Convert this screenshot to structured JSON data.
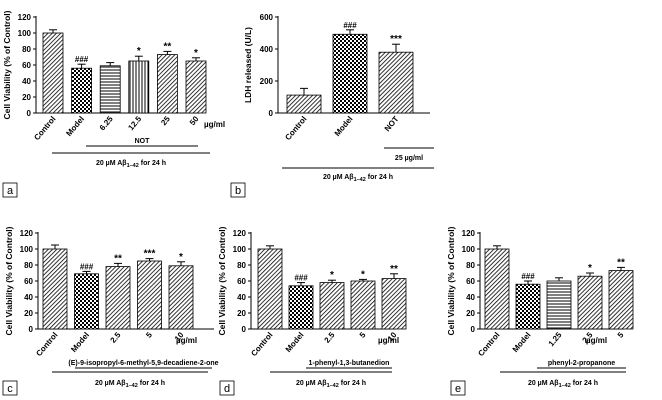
{
  "chart_data": [
    {
      "panel": "a",
      "type": "bar",
      "ylabel": "Cell Viability (% of Control)",
      "ylim": [
        0,
        120
      ],
      "yticks": [
        0,
        20,
        40,
        60,
        80,
        100,
        120
      ],
      "categories": [
        "Control",
        "Model",
        "6.25",
        "12.5",
        "25",
        "50"
      ],
      "unit": "µg/ml",
      "values": [
        100,
        56,
        59,
        65,
        73,
        65
      ],
      "errors": [
        4,
        5,
        4,
        6,
        4,
        4
      ],
      "significance": [
        "",
        "###",
        "",
        "*",
        "**",
        "*"
      ],
      "patterns": [
        "diag",
        "check",
        "horiz",
        "vert",
        "diag",
        "diag"
      ],
      "group_label": "NOT",
      "condition_prefix": "20 µM Aβ",
      "condition_sub": "1–42",
      "condition_suffix": " for 24 h"
    },
    {
      "panel": "b",
      "type": "bar",
      "ylabel": "LDH released (U/L)",
      "ylim": [
        0,
        600
      ],
      "yticks": [
        0,
        200,
        400,
        600
      ],
      "categories": [
        "Control",
        "Model",
        "NOT"
      ],
      "unit": "",
      "values": [
        112,
        492,
        380
      ],
      "errors": [
        42,
        28,
        50
      ],
      "significance": [
        "",
        "###",
        "***"
      ],
      "patterns": [
        "diag",
        "check",
        "diag"
      ],
      "group_label": "25 µg/ml",
      "condition_prefix": "20 µM Aβ",
      "condition_sub": "1–42",
      "condition_suffix": " for 24 h"
    },
    {
      "panel": "c",
      "type": "bar",
      "ylabel": "Cell Viability (% of Control)",
      "ylim": [
        0,
        120
      ],
      "yticks": [
        0,
        20,
        40,
        60,
        80,
        100,
        120
      ],
      "categories": [
        "Control",
        "Model",
        "2.5",
        "5",
        "10"
      ],
      "unit": "µg/ml",
      "values": [
        100,
        69,
        78,
        85,
        79
      ],
      "errors": [
        5,
        3,
        4,
        3,
        5
      ],
      "significance": [
        "",
        "###",
        "**",
        "***",
        "*"
      ],
      "patterns": [
        "diag",
        "check",
        "diag",
        "diag",
        "diag"
      ],
      "group_label": "(E)-9-isopropyl-6-methyl-5,9-decadiene-2-one",
      "condition_prefix": "20 µM Aβ",
      "condition_sub": "1–42",
      "condition_suffix": " for 24 h"
    },
    {
      "panel": "d",
      "type": "bar",
      "ylabel": "Cell Viability (% of Control)",
      "ylim": [
        0,
        120
      ],
      "yticks": [
        0,
        20,
        40,
        60,
        80,
        100,
        120
      ],
      "categories": [
        "Control",
        "Model",
        "2.5",
        "5",
        "10"
      ],
      "unit": "µg/ml",
      "values": [
        100,
        54,
        58,
        60,
        63
      ],
      "errors": [
        4,
        4,
        3,
        2,
        6
      ],
      "significance": [
        "",
        "###",
        "*",
        "*",
        "**"
      ],
      "patterns": [
        "diag",
        "check",
        "diag",
        "diag",
        "diag"
      ],
      "group_label": "1-phenyl-1,3-butanedion",
      "condition_prefix": "20 µM Aβ",
      "condition_sub": "1–42",
      "condition_suffix": " for 24 h"
    },
    {
      "panel": "e",
      "type": "bar",
      "ylabel": "Cell Viability (% of Control)",
      "ylim": [
        0,
        120
      ],
      "yticks": [
        0,
        20,
        40,
        60,
        80,
        100,
        120
      ],
      "categories": [
        "Control",
        "Model",
        "1.25",
        "2.5",
        "5"
      ],
      "unit": "µg/ml",
      "values": [
        100,
        56,
        60,
        66,
        73
      ],
      "errors": [
        4,
        4,
        4,
        4,
        4
      ],
      "significance": [
        "",
        "###",
        "",
        "*",
        "**"
      ],
      "patterns": [
        "diag",
        "check",
        "horiz",
        "diag",
        "diag"
      ],
      "group_label": "phenyl-2-propanone",
      "condition_prefix": "20 µM Aβ",
      "condition_sub": "1–42",
      "condition_suffix": " for 24 h"
    }
  ]
}
